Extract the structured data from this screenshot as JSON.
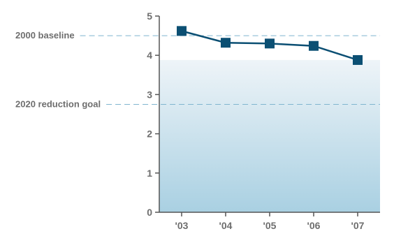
{
  "chart_data": {
    "type": "line",
    "categories": [
      "'03",
      "'04",
      "'05",
      "'06",
      "'07"
    ],
    "values": [
      4.62,
      4.32,
      4.3,
      4.24,
      3.88
    ],
    "y_ticks": [
      "0",
      "1",
      "2",
      "3",
      "4",
      "5"
    ],
    "ylim": [
      0,
      5
    ],
    "grid": false,
    "reference_lines": [
      {
        "label": "2000 baseline",
        "value": 4.5
      },
      {
        "label": "2020 reduction goal",
        "value": 2.75
      }
    ],
    "colors": {
      "line": "#0b4f73",
      "marker": "#0b4f73",
      "area_top": "#eef4f8",
      "area_bottom": "#a9d0e2",
      "reference": "#7fb5cf",
      "axis": "#555555",
      "text": "#6e6e6e"
    }
  }
}
